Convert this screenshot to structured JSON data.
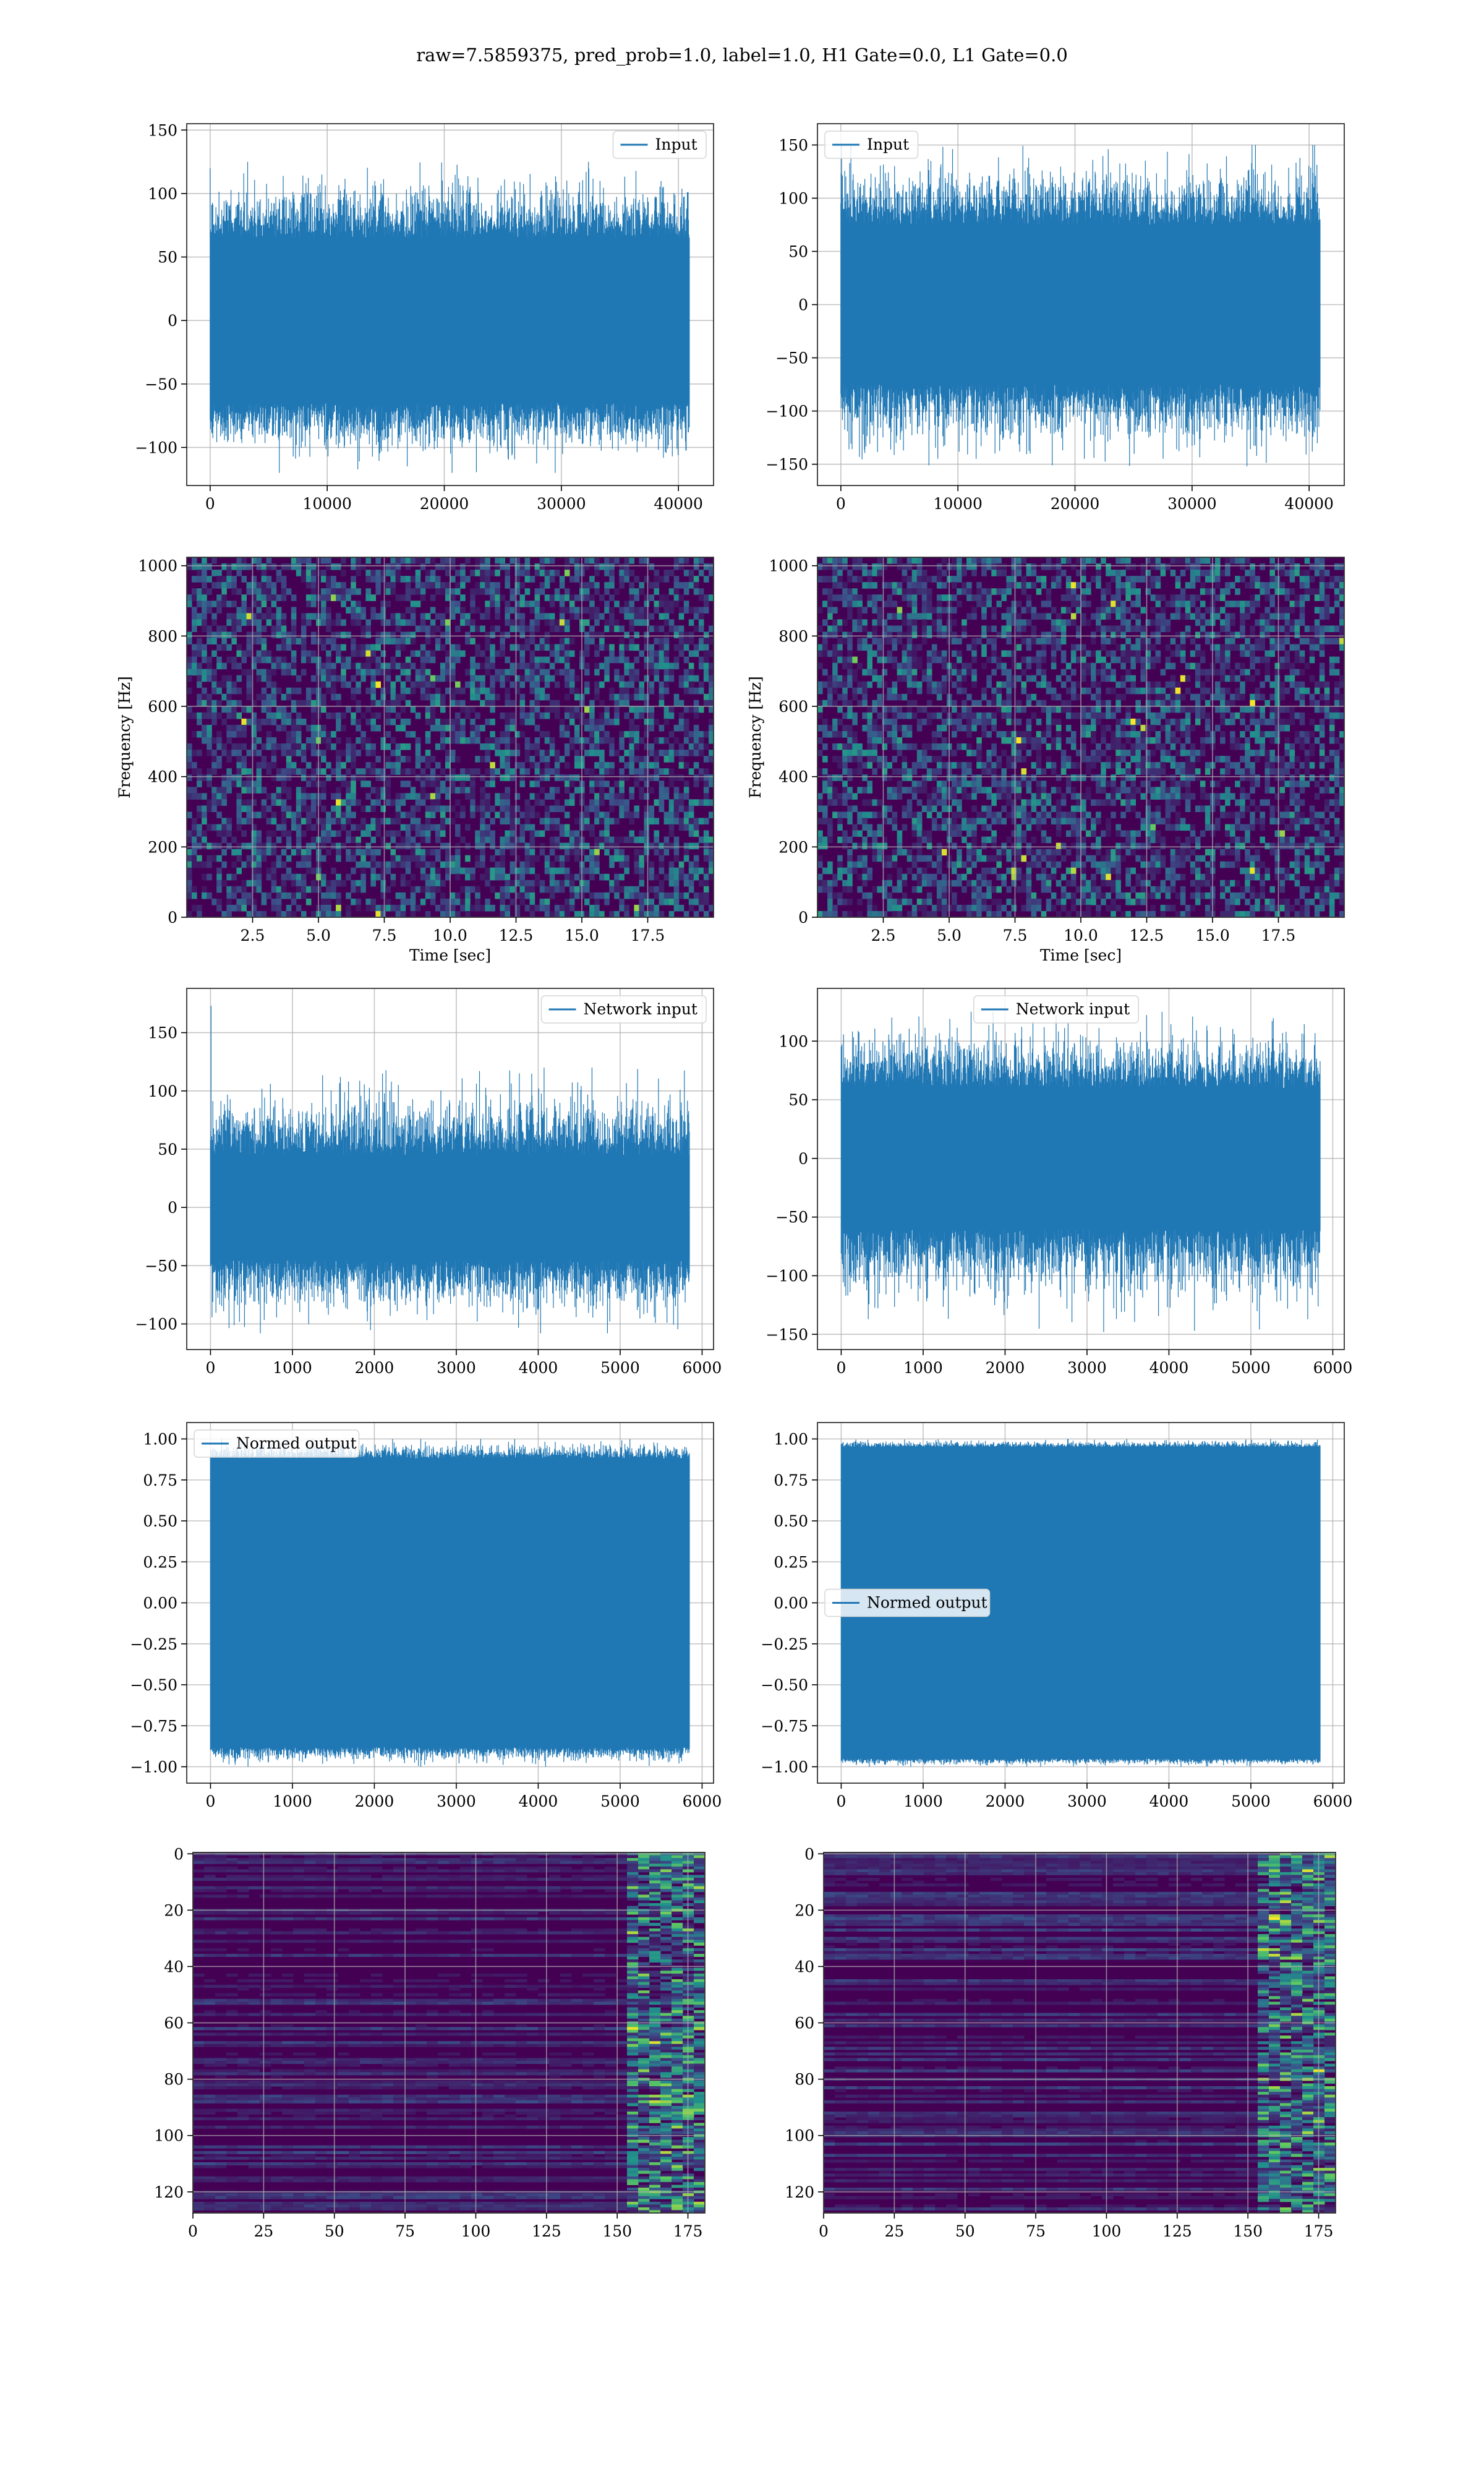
{
  "figure_title": "raw=7.5859375, pred_prob=1.0, label=1.0, H1 Gate=0.0, L1 Gate=0.0",
  "colors": {
    "series": "#1f77b4",
    "grid": "#b0b0b0",
    "axis": "#333333",
    "viridis_low": "#440154",
    "viridis_mid": "#21918c",
    "viridis_high": "#fde725"
  },
  "chart_data": [
    {
      "panel": "row1-left",
      "type": "line",
      "title": "",
      "xlabel": "",
      "ylabel": "",
      "x_range": [
        0,
        40960
      ],
      "xlim": [
        -2000,
        43000
      ],
      "ylim": [
        -130,
        155
      ],
      "xticks": [
        0,
        10000,
        20000,
        30000,
        40000
      ],
      "yticks": [
        -100,
        -50,
        0,
        50,
        100,
        150
      ],
      "envelope": {
        "typical": 65,
        "peak": 125,
        "min_peak": -120
      },
      "series": [
        {
          "name": "Input"
        }
      ],
      "legend_position": "upper-right",
      "grid": true
    },
    {
      "panel": "row1-right",
      "type": "line",
      "title": "",
      "xlabel": "",
      "ylabel": "",
      "x_range": [
        0,
        40960
      ],
      "xlim": [
        -2000,
        43000
      ],
      "ylim": [
        -170,
        170
      ],
      "xticks": [
        0,
        10000,
        20000,
        30000,
        40000
      ],
      "yticks": [
        -150,
        -100,
        -50,
        0,
        50,
        100,
        150
      ],
      "envelope": {
        "typical": 75,
        "peak": 150,
        "min_peak": -155
      },
      "series": [
        {
          "name": "Input"
        }
      ],
      "legend_position": "upper-left",
      "grid": true
    },
    {
      "panel": "row2-left",
      "type": "heatmap",
      "title": "",
      "xlabel": "Time [sec]",
      "ylabel": "Frequency [Hz]",
      "xlim": [
        0,
        20
      ],
      "ylim": [
        0,
        1024
      ],
      "xticks": [
        2.5,
        5.0,
        7.5,
        10.0,
        12.5,
        15.0,
        17.5
      ],
      "yticks": [
        0,
        200,
        400,
        600,
        800,
        1000
      ],
      "colormap": "viridis",
      "grid": true
    },
    {
      "panel": "row2-right",
      "type": "heatmap",
      "title": "",
      "xlabel": "Time [sec]",
      "ylabel": "Frequency [Hz]",
      "xlim": [
        0,
        20
      ],
      "ylim": [
        0,
        1024
      ],
      "xticks": [
        2.5,
        5.0,
        7.5,
        10.0,
        12.5,
        15.0,
        17.5
      ],
      "yticks": [
        0,
        200,
        400,
        600,
        800,
        1000
      ],
      "colormap": "viridis",
      "grid": true
    },
    {
      "panel": "row3-left",
      "type": "line",
      "title": "",
      "xlabel": "",
      "ylabel": "",
      "x_range": [
        0,
        5850
      ],
      "xlim": [
        -290,
        6140
      ],
      "ylim": [
        -122,
        188
      ],
      "xticks": [
        0,
        1000,
        2000,
        3000,
        4000,
        5000,
        6000
      ],
      "yticks": [
        -100,
        -50,
        0,
        50,
        100,
        150
      ],
      "envelope": {
        "typical": 45,
        "peak": 120,
        "min_peak": -108,
        "spike_at_start": 173
      },
      "series": [
        {
          "name": "Network input"
        }
      ],
      "legend_position": "upper-right",
      "grid": true
    },
    {
      "panel": "row3-right",
      "type": "line",
      "title": "",
      "xlabel": "",
      "ylabel": "",
      "x_range": [
        0,
        5850
      ],
      "xlim": [
        -290,
        6140
      ],
      "ylim": [
        -163,
        145
      ],
      "xticks": [
        0,
        1000,
        2000,
        3000,
        4000,
        5000,
        6000
      ],
      "yticks": [
        -150,
        -100,
        -50,
        0,
        50,
        100
      ],
      "envelope": {
        "typical": 60,
        "peak": 125,
        "min_peak": -148
      },
      "series": [
        {
          "name": "Network input"
        }
      ],
      "legend_position": "upper-center",
      "grid": true
    },
    {
      "panel": "row4-left",
      "type": "line",
      "title": "",
      "xlabel": "",
      "ylabel": "",
      "x_range": [
        0,
        5850
      ],
      "xlim": [
        -290,
        6140
      ],
      "ylim": [
        -1.1,
        1.1
      ],
      "xticks": [
        0,
        1000,
        2000,
        3000,
        4000,
        5000,
        6000
      ],
      "yticks": [
        -1.0,
        -0.75,
        -0.5,
        -0.25,
        0.0,
        0.25,
        0.5,
        0.75,
        1.0
      ],
      "envelope": {
        "typical": 0.88,
        "peak": 1.0,
        "min_peak": -1.0
      },
      "series": [
        {
          "name": "Normed output"
        }
      ],
      "legend_position": "upper-left",
      "grid": true
    },
    {
      "panel": "row4-right",
      "type": "line",
      "title": "",
      "xlabel": "",
      "ylabel": "",
      "x_range": [
        0,
        5850
      ],
      "xlim": [
        -290,
        6140
      ],
      "ylim": [
        -1.1,
        1.1
      ],
      "xticks": [
        0,
        1000,
        2000,
        3000,
        4000,
        5000,
        6000
      ],
      "yticks": [
        -1.0,
        -0.75,
        -0.5,
        -0.25,
        0.0,
        0.25,
        0.5,
        0.75,
        1.0
      ],
      "envelope": {
        "typical": 0.95,
        "peak": 1.0,
        "min_peak": -1.0
      },
      "series": [
        {
          "name": "Normed output"
        }
      ],
      "legend_position": "center-left",
      "grid": true
    },
    {
      "panel": "row5-left",
      "type": "heatmap",
      "title": "",
      "xlabel": "",
      "ylabel": "",
      "xlim": [
        0,
        181
      ],
      "ylim": [
        127.5,
        -0.5
      ],
      "y_inverted": true,
      "xticks": [
        0,
        25,
        50,
        75,
        100,
        125,
        150,
        175
      ],
      "yticks": [
        0,
        20,
        40,
        60,
        80,
        100,
        120
      ],
      "colormap": "viridis",
      "active_columns_from": 150,
      "grid": true
    },
    {
      "panel": "row5-right",
      "type": "heatmap",
      "title": "",
      "xlabel": "",
      "ylabel": "",
      "xlim": [
        0,
        181
      ],
      "ylim": [
        127.5,
        -0.5
      ],
      "y_inverted": true,
      "xticks": [
        0,
        25,
        50,
        75,
        100,
        125,
        150,
        175
      ],
      "yticks": [
        0,
        20,
        40,
        60,
        80,
        100,
        120
      ],
      "colormap": "viridis",
      "active_columns_from": 150,
      "grid": true
    }
  ]
}
